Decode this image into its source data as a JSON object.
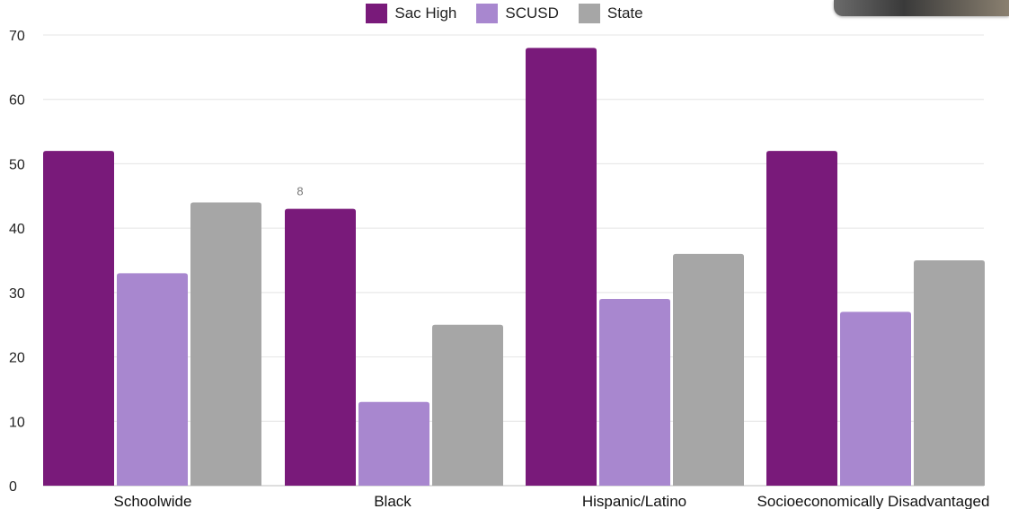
{
  "chart_data": {
    "type": "bar",
    "categories": [
      "Schoolwide",
      "Black",
      "Hispanic/Latino",
      "Socioeconomically Disadvantaged"
    ],
    "series": [
      {
        "name": "Sac High",
        "color": "#791a7a",
        "values": [
          52,
          43,
          68,
          52
        ]
      },
      {
        "name": "SCUSD",
        "color": "#a887cf",
        "values": [
          33,
          13,
          29,
          27
        ]
      },
      {
        "name": "State",
        "color": "#a6a6a6",
        "values": [
          44,
          25,
          36,
          35
        ]
      }
    ],
    "ylim": [
      0,
      70
    ],
    "yticks": [
      0,
      10,
      20,
      30,
      40,
      50,
      60,
      70
    ],
    "grid": true,
    "legend_position": "top-center",
    "annotations": [
      {
        "text": "8",
        "category": "Black",
        "series": "Sac High"
      }
    ]
  }
}
